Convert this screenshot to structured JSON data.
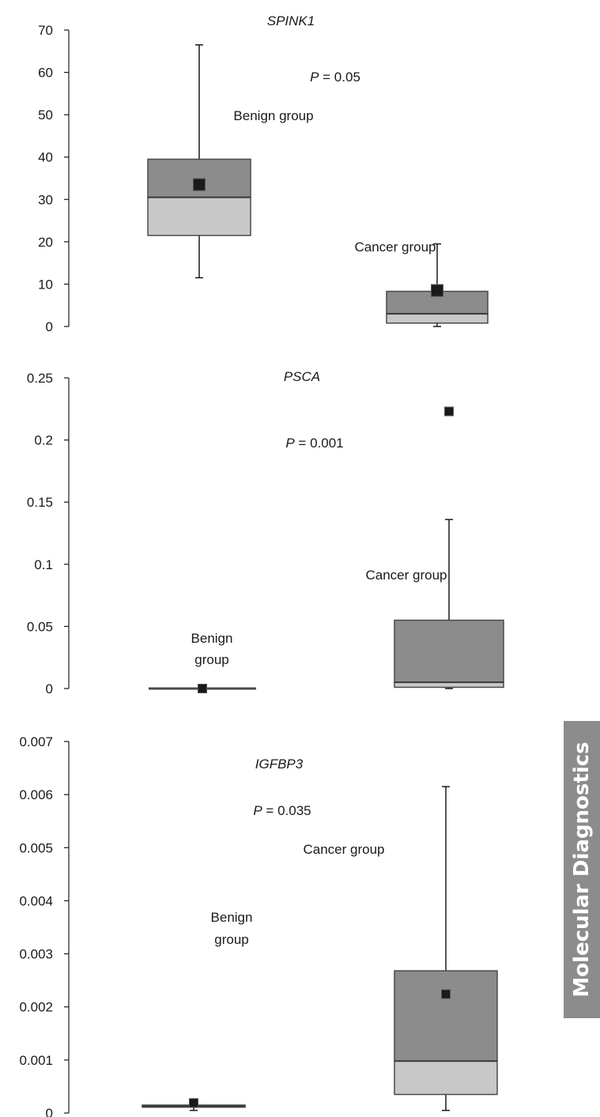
{
  "side_tab": {
    "label": "Molecular Diagnostics"
  },
  "colors": {
    "box_upper": "#8c8c8c",
    "box_lower": "#c8c8c8",
    "mean_marker": "#1a1a1a",
    "line": "#1a1a1a"
  },
  "chart_data": [
    {
      "type": "boxplot",
      "title": "SPINK1",
      "p_value": {
        "prefix": "P",
        "text": " = 0.05"
      },
      "ylim": [
        0,
        70
      ],
      "yticks": [
        0,
        10,
        20,
        30,
        40,
        50,
        60,
        70
      ],
      "ytick_labels": [
        "0",
        "10",
        "20",
        "30",
        "40",
        "50",
        "60",
        "70"
      ],
      "groups": [
        {
          "label": [
            "Benign group"
          ],
          "min": 11.5,
          "q1": 21.5,
          "median": 30.5,
          "q3": 39.5,
          "max": 66.5,
          "mean": 33.5
        },
        {
          "label": [
            "Cancer group"
          ],
          "min": 0,
          "q1": 0.8,
          "median": 3,
          "q3": 8.3,
          "max": 19.5,
          "mean": 8.5
        }
      ]
    },
    {
      "type": "boxplot",
      "title": "PSCA",
      "p_value": {
        "prefix": "P",
        "text": " = 0.001"
      },
      "ylim": [
        0,
        0.25
      ],
      "yticks": [
        0,
        0.05,
        0.1,
        0.15,
        0.2,
        0.25
      ],
      "ytick_labels": [
        "0",
        "0.05",
        "0.1",
        "0.15",
        "0.2",
        "0.25"
      ],
      "groups": [
        {
          "label": [
            "Benign",
            "group"
          ],
          "min": 0,
          "q1": 0,
          "median": 0,
          "q3": 0,
          "max": 0,
          "mean": 0
        },
        {
          "label": [
            "Cancer group"
          ],
          "min": 0,
          "q1": 0.001,
          "median": 0.005,
          "q3": 0.055,
          "max": 0.136,
          "mean": 0.223
        }
      ]
    },
    {
      "type": "boxplot",
      "title": "IGFBP3",
      "p_value": {
        "prefix": "P",
        "text": " = 0.035"
      },
      "ylim": [
        0,
        0.007
      ],
      "yticks": [
        0,
        0.001,
        0.002,
        0.003,
        0.004,
        0.005,
        0.006,
        0.007
      ],
      "ytick_labels": [
        "0",
        "0.001",
        "0.002",
        "0.003",
        "0.004",
        "0.005",
        "0.006",
        "0.007"
      ],
      "groups": [
        {
          "label": [
            "Benign",
            "group"
          ],
          "min": 5e-05,
          "q1": 0.00011,
          "median": 0.00013,
          "q3": 0.00015,
          "max": 0.00018,
          "mean": 0.00019
        },
        {
          "label": [
            "Cancer group"
          ],
          "min": 5e-05,
          "q1": 0.00035,
          "median": 0.00098,
          "q3": 0.00268,
          "max": 0.00615,
          "mean": 0.00224
        }
      ]
    }
  ]
}
